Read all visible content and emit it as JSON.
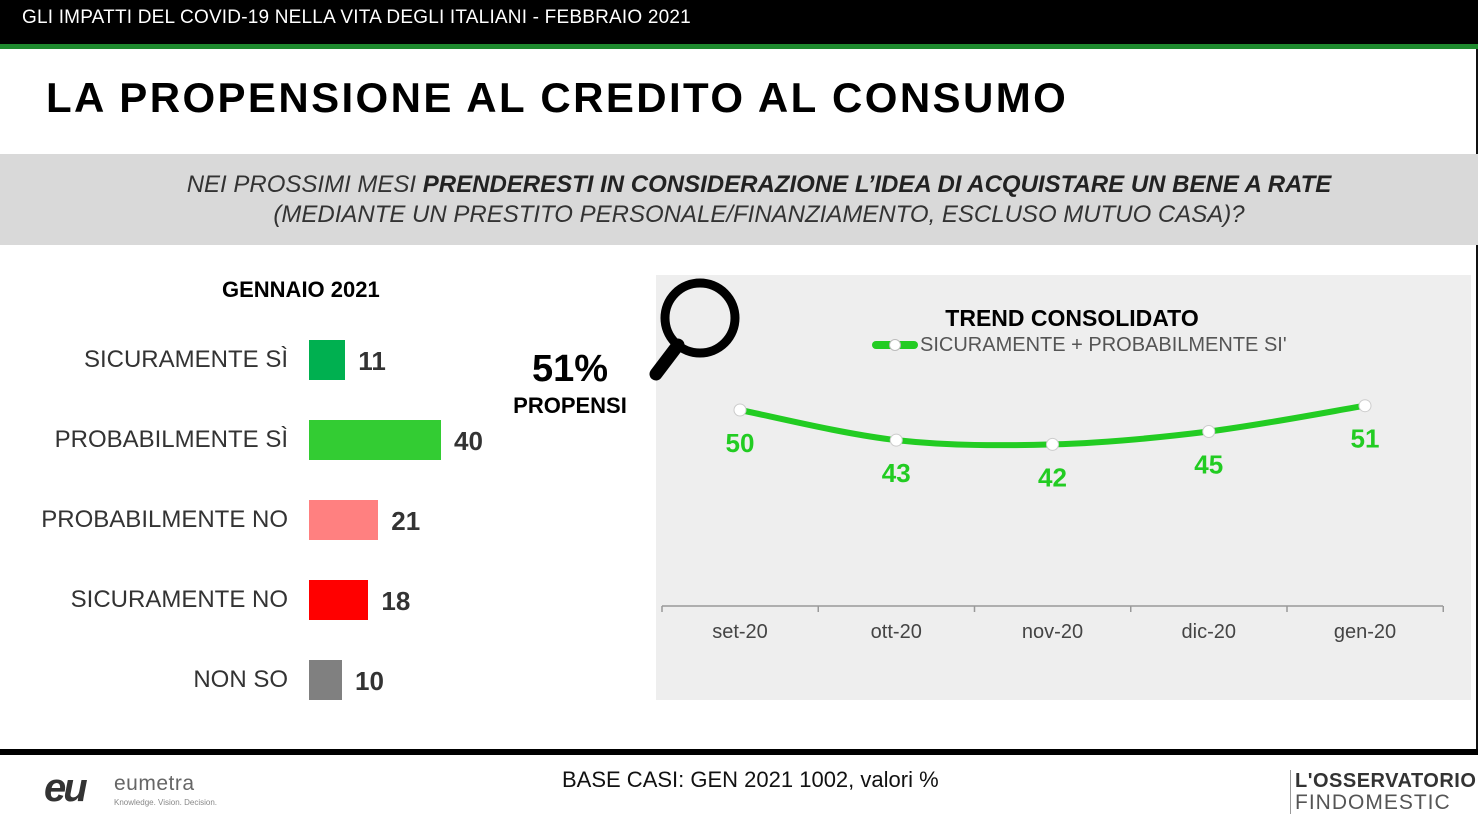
{
  "header": {
    "top_title": "GLI IMPATTI DEL COVID-19 NELLA VITA DEGLI ITALIANI - FEBBRAIO 2021",
    "main_title": "LA PROPENSIONE AL CREDITO AL CONSUMO"
  },
  "question": {
    "line1_prefix": "NEI PROSSIMI MESI ",
    "line1_bold": "PRENDERESTI IN CONSIDERAZIONE L’IDEA DI ACQUISTARE UN BENE  A RATE",
    "line2": "(MEDIANTE UN PRESTITO PERSONALE/FINANZIAMENTO, ESCLUSO MUTUO CASA)?"
  },
  "propensi": {
    "percent": "51%",
    "label": "PROPENSI"
  },
  "chart_data": [
    {
      "type": "bar",
      "orientation": "horizontal",
      "title": "GENNAIO 2021",
      "categories": [
        "SICURAMENTE SÌ",
        "PROBABILMENTE SÌ",
        "PROBABILMENTE NO",
        "SICURAMENTE NO",
        "NON SO"
      ],
      "values": [
        11,
        40,
        21,
        18,
        10
      ],
      "colors": [
        "#00b050",
        "#33cc33",
        "#ff8080",
        "#ff0000",
        "#808080"
      ]
    },
    {
      "type": "line",
      "title": "TREND CONSOLIDATO",
      "x": [
        "set-20",
        "ott-20",
        "nov-20",
        "dic-20",
        "gen-20"
      ],
      "series": [
        {
          "name": "SICURAMENTE + PROBABILMENTE SI'",
          "values": [
            50,
            43,
            42,
            45,
            51
          ],
          "color": "#22cc22"
        }
      ],
      "smooth": true,
      "data_labels": true,
      "grid": false
    }
  ],
  "footer": {
    "base": "BASE CASI: GEN 2021 1002, valori %",
    "logo_left_mark": "eu",
    "logo_left_name": "eumetra",
    "logo_left_tagline": "Knowledge. Vision. Decision.",
    "logo_right_line1": "L'OSSERVATORIO",
    "logo_right_line2": "FINDOMESTIC"
  }
}
